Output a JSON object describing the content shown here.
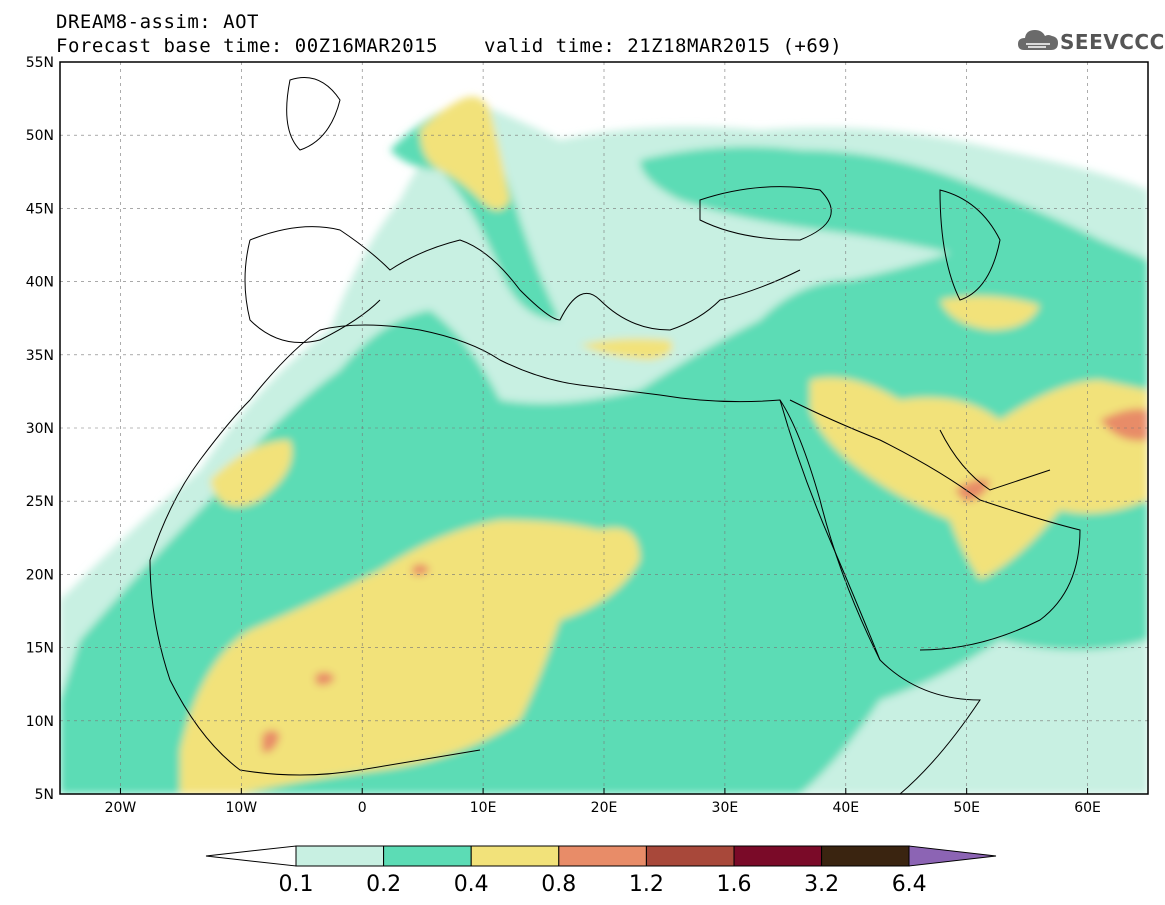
{
  "title": {
    "line1": "DREAM8-assim: AOT",
    "base_time": "Forecast base time: 00Z16MAR2015",
    "valid_time": "valid time: 21Z18MAR2015 (+69)"
  },
  "logo": {
    "text": "SEEVCCC",
    "icon": "cloud-logo-icon"
  },
  "axes": {
    "lat_labels": [
      "55N",
      "50N",
      "45N",
      "40N",
      "35N",
      "30N",
      "25N",
      "20N",
      "15N",
      "10N",
      "5N"
    ],
    "lon_labels": [
      "20W",
      "10W",
      "0",
      "10E",
      "20E",
      "30E",
      "40E",
      "50E",
      "60E"
    ],
    "lat_range": [
      5,
      55
    ],
    "lon_range": [
      -25,
      65
    ]
  },
  "colorbar": {
    "labels": [
      "0.1",
      "0.2",
      "0.4",
      "0.8",
      "1.2",
      "1.6",
      "3.2",
      "6.4"
    ],
    "colors": [
      "#ffffff",
      "#c8f0e2",
      "#5cdcb5",
      "#f2e27a",
      "#e88c68",
      "#a8483a",
      "#7a0a28",
      "#3a2410",
      "#8c64b4"
    ]
  }
}
